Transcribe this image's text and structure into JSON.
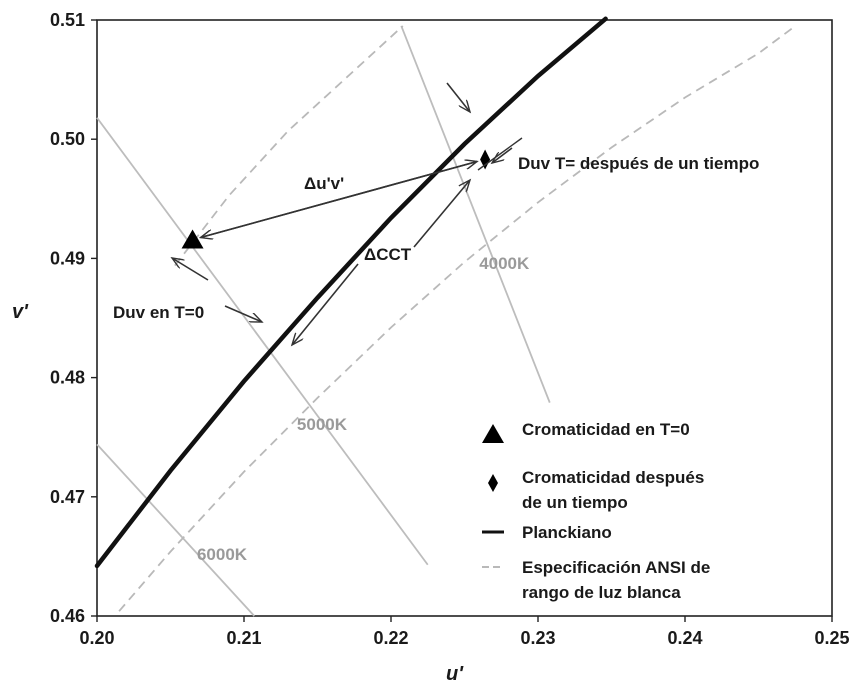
{
  "chart_data": {
    "type": "line",
    "xlabel": "u'",
    "ylabel": "v'",
    "xlim": [
      0.2,
      0.25
    ],
    "ylim": [
      0.46,
      0.51
    ],
    "x_ticks": [
      "0.20",
      "0.21",
      "0.22",
      "0.23",
      "0.24",
      "0.25"
    ],
    "y_ticks": [
      "0.46",
      "0.47",
      "0.48",
      "0.49",
      "0.50",
      "0.51"
    ],
    "grid": false,
    "planckian": [
      [
        0.2,
        0.4642
      ],
      [
        0.205,
        0.4722
      ],
      [
        0.21,
        0.4797
      ],
      [
        0.215,
        0.4867
      ],
      [
        0.22,
        0.4934
      ],
      [
        0.225,
        0.4996
      ],
      [
        0.23,
        0.5053
      ],
      [
        0.2346,
        0.5101
      ]
    ],
    "ansi_upper": [
      [
        0.2053,
        0.4894
      ],
      [
        0.209,
        0.4953
      ],
      [
        0.213,
        0.5007
      ],
      [
        0.217,
        0.5052
      ],
      [
        0.2208,
        0.5095
      ]
    ],
    "ansi_lower": [
      [
        0.2015,
        0.4604
      ],
      [
        0.205,
        0.4654
      ],
      [
        0.21,
        0.4721
      ],
      [
        0.215,
        0.4783
      ],
      [
        0.22,
        0.4842
      ],
      [
        0.225,
        0.4897
      ],
      [
        0.23,
        0.4947
      ],
      [
        0.235,
        0.4993
      ],
      [
        0.24,
        0.5035
      ],
      [
        0.245,
        0.5072
      ],
      [
        0.2475,
        0.5095
      ]
    ],
    "isotherms": [
      {
        "label": "4000K",
        "from": [
          0.2207,
          0.5095
        ],
        "to": [
          0.2308,
          0.4779
        ],
        "label_at": [
          0.226,
          0.4891
        ]
      },
      {
        "label": "5000K",
        "from": [
          0.2,
          0.5018
        ],
        "to": [
          0.2225,
          0.4643
        ],
        "label_at": [
          0.2136,
          0.4756
        ]
      },
      {
        "label": "6000K",
        "from": [
          0.2,
          0.4744
        ],
        "to": [
          0.2107,
          0.46
        ],
        "label_at": [
          0.2068,
          0.4647
        ]
      }
    ],
    "points": [
      {
        "name": "Cromaticidad en T=0",
        "marker": "triangle",
        "x": 0.2065,
        "y": 0.4915
      },
      {
        "name": "Cromaticidad después de un tiempo",
        "marker": "diamond",
        "x": 0.2264,
        "y": 0.4983
      }
    ],
    "annotations": {
      "delta_uv": "Δu'v'",
      "delta_cct": "ΔCCT",
      "duv_t0": "Duv en T=0",
      "duv_t": "Duv T= después de un tiempo"
    },
    "legend": {
      "position": "bottom-right",
      "items": [
        {
          "marker": "triangle",
          "lines": [
            "Cromaticidad en T=0"
          ]
        },
        {
          "marker": "diamond",
          "lines": [
            "Cromaticidad después",
            "de un tiempo"
          ]
        },
        {
          "marker": "solid-line",
          "lines": [
            "Planckiano"
          ]
        },
        {
          "marker": "dashed-line",
          "lines": [
            "Especificación ANSI de",
            "rango de luz blanca"
          ]
        }
      ]
    },
    "colors": {
      "planckian": "#111111",
      "ansi": "#b9b9b9",
      "isotherm": "#bdbdbd",
      "annotation": "#333333",
      "cct_label": "#9a9a9a"
    }
  }
}
